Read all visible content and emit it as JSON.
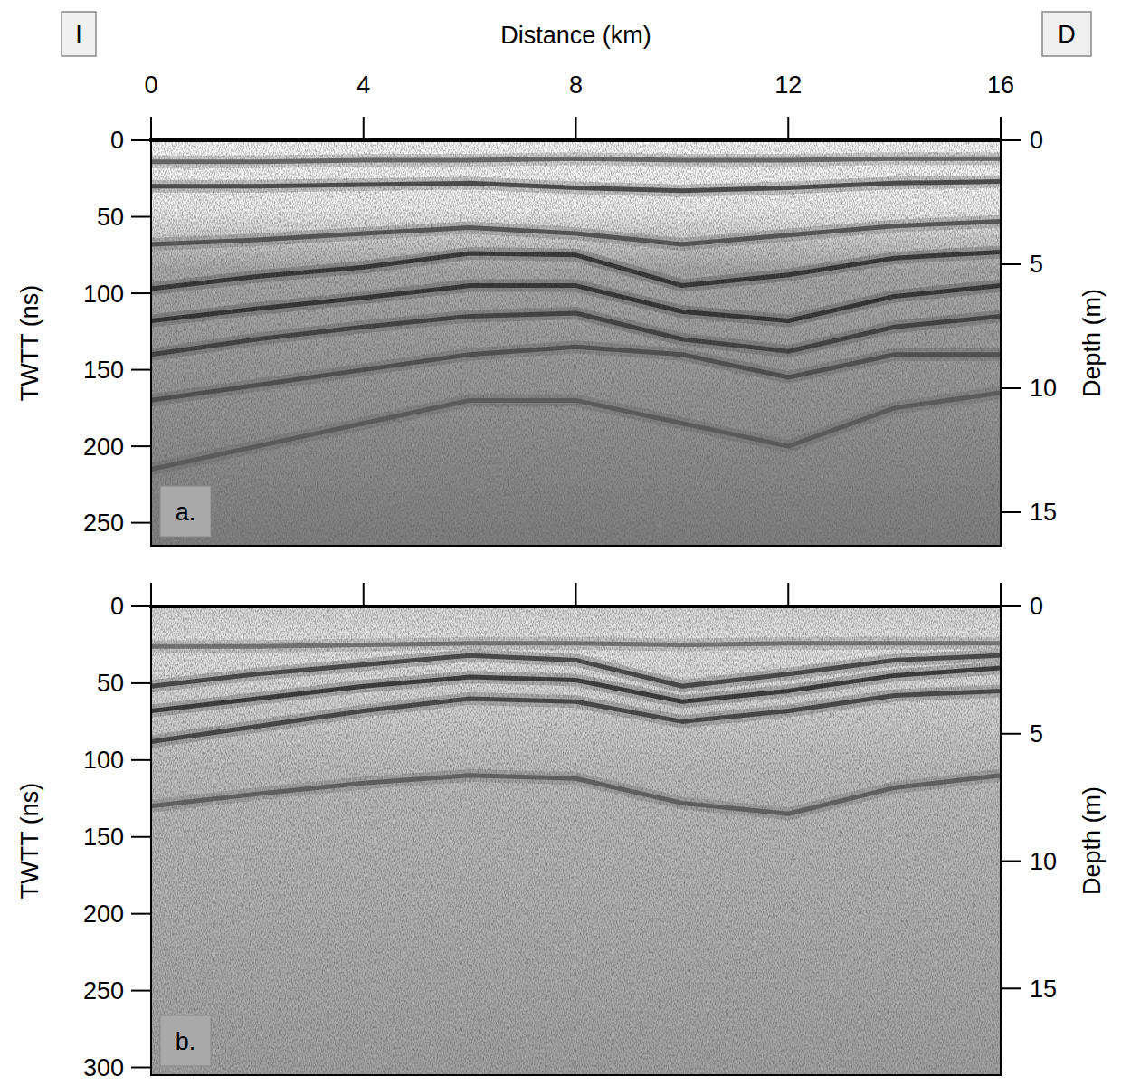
{
  "chart_data": [
    {
      "type": "line",
      "x_label": "Distance (km)",
      "y_label": "TWTT (ns)",
      "y2_label": "Depth (m)",
      "label": "a.",
      "annotations": [
        "I",
        "D"
      ],
      "x": [
        0,
        2,
        4,
        6,
        8,
        10,
        12,
        14,
        16
      ],
      "xlim": [
        0,
        16
      ],
      "xticks": [
        0,
        4,
        8,
        12,
        16
      ],
      "ylim": [
        265,
        0
      ],
      "yticks": [
        0,
        50,
        100,
        150,
        200,
        250
      ],
      "y2lim": [
        16.35,
        0
      ],
      "y2ticks": [
        0,
        5,
        10,
        15
      ],
      "series": [
        {
          "color": "#555555",
          "values": [
            14,
            14,
            13,
            13,
            12,
            13,
            13,
            12,
            12
          ]
        },
        {
          "color": "#333333",
          "values": [
            30,
            30,
            29,
            28,
            31,
            33,
            31,
            28,
            27
          ]
        },
        {
          "color": "#444444",
          "values": [
            68,
            65,
            61,
            57,
            61,
            68,
            62,
            56,
            53
          ]
        },
        {
          "color": "#222222",
          "values": [
            97,
            89,
            83,
            74,
            75,
            95,
            88,
            77,
            73
          ]
        },
        {
          "color": "#222222",
          "values": [
            118,
            110,
            103,
            95,
            95,
            112,
            118,
            102,
            95
          ]
        },
        {
          "color": "#333333",
          "values": [
            140,
            130,
            122,
            115,
            113,
            130,
            138,
            122,
            115
          ]
        },
        {
          "color": "#444444",
          "values": [
            170,
            160,
            150,
            140,
            135,
            140,
            155,
            140,
            140
          ]
        },
        {
          "color": "#555555",
          "values": [
            215,
            200,
            185,
            170,
            170,
            185,
            200,
            175,
            165
          ]
        }
      ]
    },
    {
      "type": "line",
      "y_label": "TWTT (ns)",
      "y2_label": "Depth (m)",
      "label": "b.",
      "tick_labels": "y",
      "x": [
        0,
        2,
        4,
        6,
        8,
        10,
        12,
        14,
        16
      ],
      "xlim": [
        0,
        16
      ],
      "xticks": [
        0,
        4,
        8,
        12,
        16
      ],
      "ylim": [
        305,
        0
      ],
      "yticks": [
        0,
        50,
        100,
        150,
        200,
        250,
        300
      ],
      "y2lim": [
        18.4,
        0
      ],
      "y2ticks": [
        0,
        5,
        10,
        15
      ],
      "series": [
        {
          "color": "#666666",
          "values": [
            26,
            26,
            25,
            24,
            24,
            25,
            24,
            24,
            24
          ]
        },
        {
          "color": "#333333",
          "values": [
            52,
            44,
            38,
            32,
            35,
            52,
            44,
            35,
            32
          ]
        },
        {
          "color": "#222222",
          "values": [
            68,
            60,
            52,
            46,
            48,
            62,
            55,
            45,
            40
          ]
        },
        {
          "color": "#333333",
          "values": [
            88,
            78,
            68,
            60,
            62,
            75,
            68,
            58,
            55
          ]
        },
        {
          "color": "#555555",
          "values": [
            130,
            122,
            115,
            110,
            112,
            128,
            135,
            118,
            110
          ]
        }
      ]
    }
  ]
}
